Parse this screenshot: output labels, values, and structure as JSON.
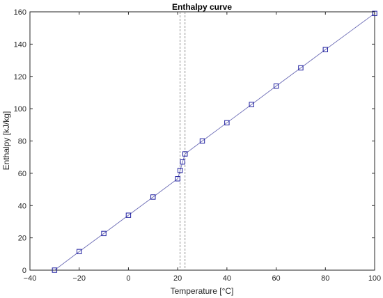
{
  "chart_data": {
    "type": "line",
    "title": "Enthalpy curve",
    "xlabel": "Temperature [°C]",
    "ylabel": "Enthalpy [kJ/kg]",
    "xlim": [
      -40,
      100
    ],
    "ylim": [
      0,
      160
    ],
    "xticks": [
      -40,
      -20,
      0,
      20,
      40,
      60,
      80,
      100
    ],
    "yticks": [
      0,
      20,
      40,
      60,
      80,
      100,
      120,
      140,
      160
    ],
    "xtick_labels": [
      "−40",
      "−20",
      "0",
      "20",
      "40",
      "60",
      "80",
      "100"
    ],
    "ytick_labels": [
      "0",
      "20",
      "40",
      "60",
      "80",
      "100",
      "120",
      "140",
      "160"
    ],
    "grid": false,
    "series": [
      {
        "marker": "square",
        "line_color": "#6b6bb5",
        "marker_color": "#1f1fa0",
        "points": [
          {
            "x": -30,
            "y": 0
          },
          {
            "x": -20,
            "y": 11.5
          },
          {
            "x": -10,
            "y": 22.7
          },
          {
            "x": 0,
            "y": 34
          },
          {
            "x": 10,
            "y": 45.3
          },
          {
            "x": 20,
            "y": 56.6
          },
          {
            "x": 21,
            "y": 61.8
          },
          {
            "x": 22,
            "y": 67
          },
          {
            "x": 23,
            "y": 72
          },
          {
            "x": 30,
            "y": 80
          },
          {
            "x": 40,
            "y": 91.3
          },
          {
            "x": 50,
            "y": 102.6
          },
          {
            "x": 60,
            "y": 114
          },
          {
            "x": 70,
            "y": 125.3
          },
          {
            "x": 80,
            "y": 136.6
          },
          {
            "x": 100,
            "y": 159
          }
        ]
      }
    ],
    "reference_lines": [
      {
        "orientation": "vertical",
        "x": 21,
        "style": "dashed",
        "color": "#7a7a7a"
      },
      {
        "orientation": "vertical",
        "x": 23,
        "style": "dashed",
        "color": "#7a7a7a"
      }
    ]
  }
}
